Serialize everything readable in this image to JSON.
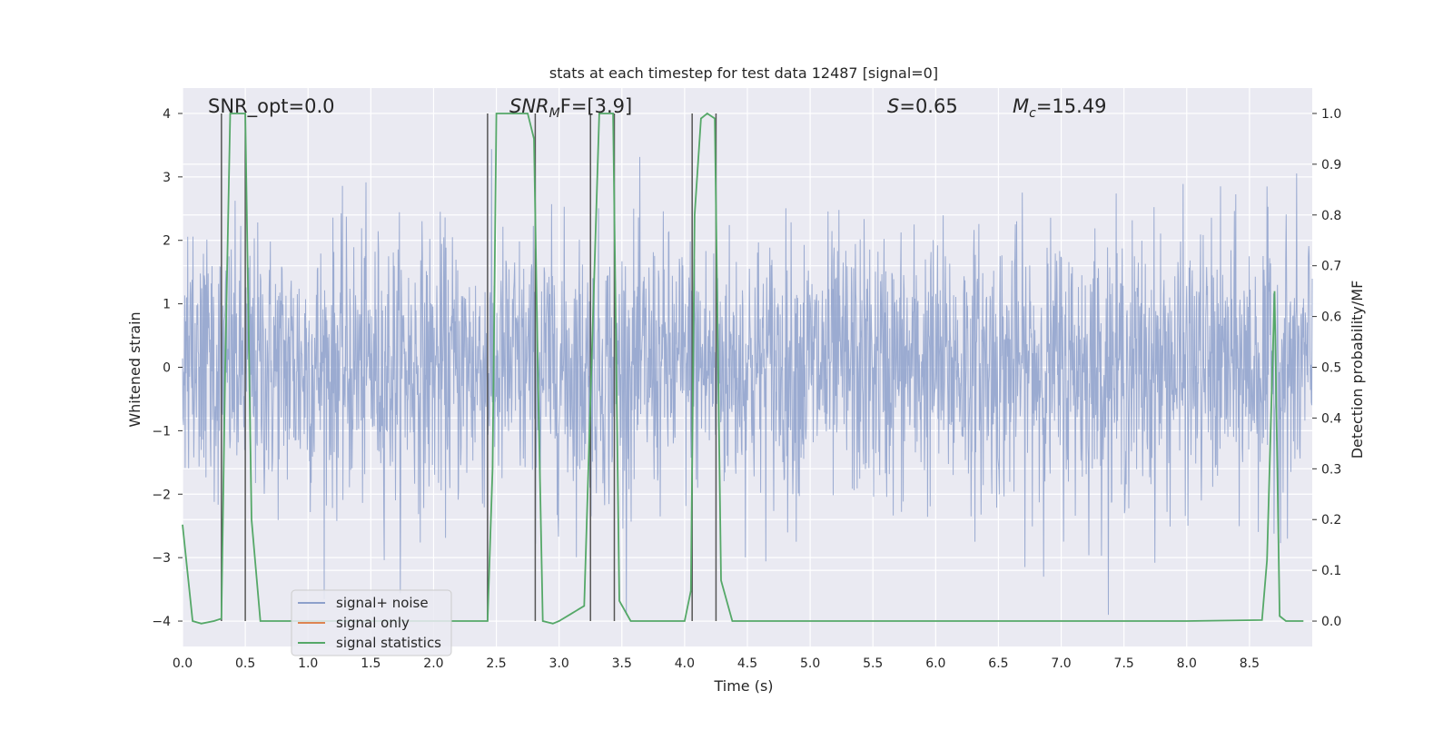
{
  "chart_data": {
    "type": "line",
    "title": "stats at each timestep for test data 12487 [signal=0]",
    "xlabel": "Time (s)",
    "ylabel_left": "Whitened strain",
    "ylabel_right": "Detection probability/MF",
    "xlim": [
      0.0,
      9.0
    ],
    "ylim_left": [
      -4.4,
      4.4
    ],
    "ylim_right": [
      -0.05,
      1.05
    ],
    "x_ticks": [
      "0.0",
      "0.5",
      "1.0",
      "1.5",
      "2.0",
      "2.5",
      "3.0",
      "3.5",
      "4.0",
      "4.5",
      "5.0",
      "5.5",
      "6.0",
      "6.5",
      "7.0",
      "7.5",
      "8.0",
      "8.5"
    ],
    "y_left_ticks": [
      "4",
      "3",
      "2",
      "1",
      "0",
      "−1",
      "−2",
      "−3",
      "−4"
    ],
    "y_right_ticks": [
      "1.0",
      "0.9",
      "0.8",
      "0.7",
      "0.6",
      "0.5",
      "0.4",
      "0.3",
      "0.2",
      "0.1",
      "0.0"
    ],
    "grid": true,
    "legend_position": "lower-left",
    "annotations": {
      "snr_opt": "SNR_opt=0.0",
      "snr_mf_label": "SNR",
      "snr_mf_sub": "M",
      "snr_mf_rest": "F=[3.9]",
      "s_label": "S",
      "s_value": "=0.65",
      "mc_label": "M",
      "mc_sub": "c",
      "mc_value": "=15.49"
    },
    "series": [
      {
        "name": "signal+ noise",
        "color": "#8da0cb",
        "description_kind": "whitened strain noise, |amplitude| roughly 1.6 typical, peaks near 4"
      },
      {
        "name": "signal only",
        "color": "#dd8452",
        "values": []
      },
      {
        "name": "signal statistics",
        "color": "#55a868",
        "axis": "right",
        "x": [
          0.0,
          0.08,
          0.15,
          0.25,
          0.31,
          0.34,
          0.38,
          0.5,
          0.55,
          0.62,
          1.0,
          1.5,
          2.0,
          2.4,
          2.43,
          2.47,
          2.5,
          2.75,
          2.8,
          2.83,
          2.87,
          2.95,
          3.0,
          3.1,
          3.2,
          3.27,
          3.32,
          3.43,
          3.48,
          3.57,
          4.0,
          4.05,
          4.08,
          4.13,
          4.18,
          4.24,
          4.29,
          4.38,
          5.0,
          6.0,
          7.0,
          8.0,
          8.6,
          8.64,
          8.7,
          8.74,
          8.79,
          8.85,
          8.93
        ],
        "y": [
          0.19,
          0.0,
          -0.005,
          0.0,
          0.005,
          0.5,
          1.0,
          1.0,
          0.2,
          0.0,
          0.0,
          0.0,
          0.0,
          0.0,
          0.0,
          0.3,
          1.0,
          1.0,
          0.95,
          0.5,
          0.0,
          -0.005,
          0.0,
          0.015,
          0.03,
          0.6,
          1.0,
          1.0,
          0.04,
          0.0,
          0.0,
          0.06,
          0.8,
          0.99,
          1.0,
          0.99,
          0.08,
          0.0,
          0.0,
          0.0,
          0.0,
          0.0,
          0.002,
          0.12,
          0.65,
          0.01,
          0.0,
          0.0,
          0.0
        ]
      }
    ],
    "vertical_markers_x": [
      0.31,
      0.5,
      2.43,
      2.81,
      3.25,
      3.44,
      4.06,
      4.25
    ]
  }
}
